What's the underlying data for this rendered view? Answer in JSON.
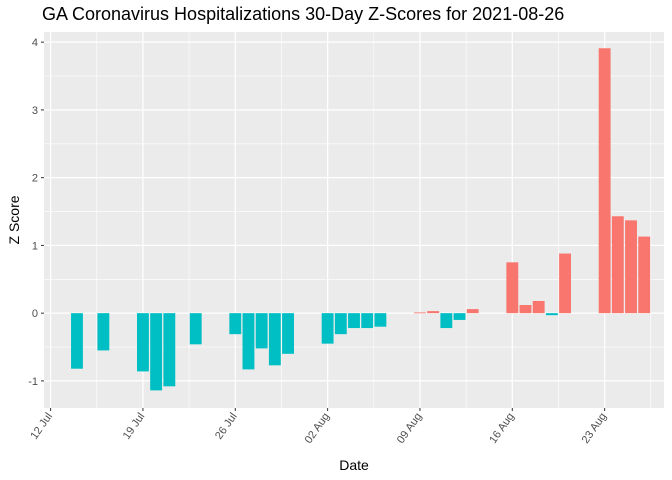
{
  "chart_data": {
    "type": "bar",
    "title": "GA Coronavirus Hospitalizations 30-Day Z-Scores for 2021-08-26",
    "xlabel": "Date",
    "ylabel": "Z Score",
    "ylim": [
      -1.4,
      4.15
    ],
    "yticks": [
      -1,
      0,
      1,
      2,
      3,
      4
    ],
    "xticks": [
      {
        "label": "12 Jul",
        "day": 0
      },
      {
        "label": "19 Jul",
        "day": 7
      },
      {
        "label": "26 Jul",
        "day": 14
      },
      {
        "label": "02 Aug",
        "day": 21
      },
      {
        "label": "09 Aug",
        "day": 28
      },
      {
        "label": "16 Aug",
        "day": 35
      },
      {
        "label": "23 Aug",
        "day": 42
      }
    ],
    "xlim_days": [
      -0.5,
      46.5
    ],
    "grid": true,
    "colors": {
      "positive": "#f8766d",
      "negative": "#00bfc4",
      "panel": "#ebebeb",
      "gridline": "#ffffff"
    },
    "bars": [
      {
        "day": 2,
        "value": -0.82
      },
      {
        "day": 4,
        "value": -0.55
      },
      {
        "day": 7,
        "value": -0.86
      },
      {
        "day": 8,
        "value": -1.14
      },
      {
        "day": 9,
        "value": -1.08
      },
      {
        "day": 11,
        "value": -0.46
      },
      {
        "day": 14,
        "value": -0.31
      },
      {
        "day": 15,
        "value": -0.83
      },
      {
        "day": 16,
        "value": -0.52
      },
      {
        "day": 17,
        "value": -0.77
      },
      {
        "day": 18,
        "value": -0.6
      },
      {
        "day": 21,
        "value": -0.45
      },
      {
        "day": 22,
        "value": -0.31
      },
      {
        "day": 23,
        "value": -0.22
      },
      {
        "day": 24,
        "value": -0.22
      },
      {
        "day": 25,
        "value": -0.2
      },
      {
        "day": 28,
        "value": 0.01
      },
      {
        "day": 29,
        "value": 0.03
      },
      {
        "day": 30,
        "value": -0.22
      },
      {
        "day": 31,
        "value": -0.1
      },
      {
        "day": 32,
        "value": 0.06
      },
      {
        "day": 35,
        "value": 0.75
      },
      {
        "day": 36,
        "value": 0.12
      },
      {
        "day": 37,
        "value": 0.18
      },
      {
        "day": 38,
        "value": -0.03
      },
      {
        "day": 39,
        "value": 0.88
      },
      {
        "day": 42,
        "value": 3.91
      },
      {
        "day": 43,
        "value": 1.43
      },
      {
        "day": 44,
        "value": 1.37
      },
      {
        "day": 45,
        "value": 1.13
      }
    ]
  }
}
